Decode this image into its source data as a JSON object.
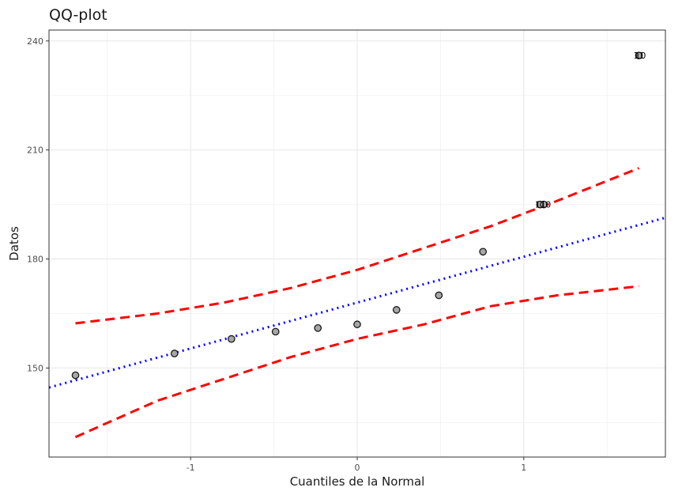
{
  "chart_data": {
    "type": "scatter",
    "title": "QQ-plot",
    "xlabel": "Cuantiles de la Normal",
    "ylabel": "Datos",
    "xlim": [
      -1.85,
      1.85
    ],
    "ylim": [
      125.5,
      243
    ],
    "x_ticks": [
      -1,
      0,
      1
    ],
    "x_tick_labels": [
      "-1",
      "0",
      "1"
    ],
    "y_ticks": [
      150,
      180,
      210,
      240
    ],
    "y_tick_labels": [
      "150",
      "180",
      "210",
      "240"
    ],
    "grid": true,
    "points": [
      {
        "x": -1.691,
        "y": 148
      },
      {
        "x": -1.097,
        "y": 154
      },
      {
        "x": -0.755,
        "y": 158
      },
      {
        "x": -0.49,
        "y": 160
      },
      {
        "x": -0.236,
        "y": 161
      },
      {
        "x": 0.0,
        "y": 162
      },
      {
        "x": 0.236,
        "y": 166
      },
      {
        "x": 0.49,
        "y": 170
      },
      {
        "x": 0.755,
        "y": 182
      },
      {
        "x": 1.097,
        "y": 195
      },
      {
        "x": 1.12,
        "y": 195
      },
      {
        "x": 1.691,
        "y": 236
      }
    ],
    "point_labels": [
      {
        "x": 1.1,
        "y": 195,
        "text": "11"
      },
      {
        "x": 1.13,
        "y": 195,
        "text": "10"
      },
      {
        "x": 1.691,
        "y": 236,
        "text": "11"
      },
      {
        "x": 1.7,
        "y": 236,
        "text": "10"
      }
    ],
    "reference_line": {
      "intercept": 168,
      "slope": 12.63,
      "color": "#0000ff",
      "style": "dotted"
    },
    "confidence_band": {
      "color": "#ff0000",
      "style": "dashed",
      "upper": [
        [
          -1.691,
          162.3
        ],
        [
          -1.2,
          165
        ],
        [
          -0.8,
          168
        ],
        [
          -0.4,
          172
        ],
        [
          0.0,
          177
        ],
        [
          0.4,
          183
        ],
        [
          0.8,
          189
        ],
        [
          1.2,
          196
        ],
        [
          1.691,
          205
        ]
      ],
      "lower": [
        [
          -1.691,
          131
        ],
        [
          -1.2,
          141
        ],
        [
          -0.8,
          147
        ],
        [
          -0.4,
          153
        ],
        [
          0.0,
          158
        ],
        [
          0.4,
          162
        ],
        [
          0.8,
          167
        ],
        [
          1.2,
          170
        ],
        [
          1.691,
          172.5
        ]
      ]
    },
    "colors": {
      "point_fill": "#a6a6a6",
      "point_stroke": "#1a1a1a",
      "grid": "#ebebeb",
      "panel_border": "#333333"
    }
  }
}
